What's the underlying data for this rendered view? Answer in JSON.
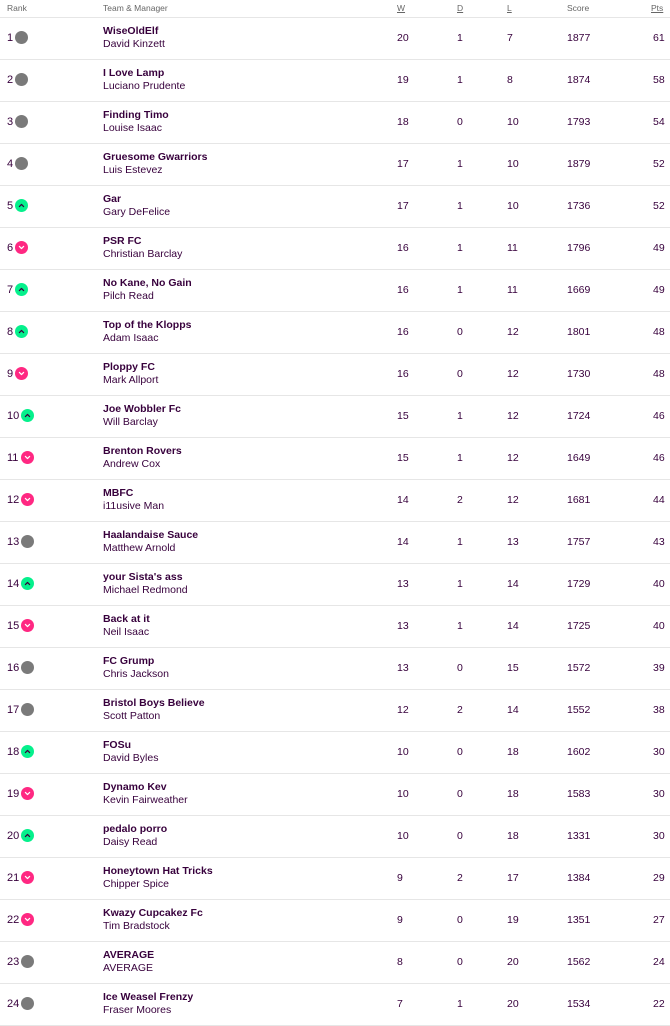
{
  "header": {
    "rank": "Rank",
    "team": "Team & Manager",
    "w": "W",
    "d": "D",
    "l": "L",
    "score": "Score",
    "pts": "Pts"
  },
  "icons": {
    "same": "circle-icon",
    "up": "chevron-up-icon",
    "down": "chevron-down-icon"
  },
  "colors": {
    "text": "#37003c",
    "same": "#7a7a7a",
    "up": "#05f08c",
    "down": "#ff2882"
  },
  "rows": [
    {
      "rank": "1",
      "movement": "same",
      "team": "WiseOldElf",
      "manager": "David Kinzett",
      "w": "20",
      "d": "1",
      "l": "7",
      "score": "1877",
      "pts": "61"
    },
    {
      "rank": "2",
      "movement": "same",
      "team": "I Love Lamp",
      "manager": "Luciano Prudente",
      "w": "19",
      "d": "1",
      "l": "8",
      "score": "1874",
      "pts": "58"
    },
    {
      "rank": "3",
      "movement": "same",
      "team": "Finding Timo",
      "manager": "Louise Isaac",
      "w": "18",
      "d": "0",
      "l": "10",
      "score": "1793",
      "pts": "54"
    },
    {
      "rank": "4",
      "movement": "same",
      "team": "Gruesome Gwarriors",
      "manager": "Luis Estevez",
      "w": "17",
      "d": "1",
      "l": "10",
      "score": "1879",
      "pts": "52"
    },
    {
      "rank": "5",
      "movement": "up",
      "team": "Gar",
      "manager": "Gary DeFelice",
      "w": "17",
      "d": "1",
      "l": "10",
      "score": "1736",
      "pts": "52"
    },
    {
      "rank": "6",
      "movement": "down",
      "team": "PSR FC",
      "manager": "Christian Barclay",
      "w": "16",
      "d": "1",
      "l": "11",
      "score": "1796",
      "pts": "49"
    },
    {
      "rank": "7",
      "movement": "up",
      "team": "No Kane, No Gain",
      "manager": "Pilch Read",
      "w": "16",
      "d": "1",
      "l": "11",
      "score": "1669",
      "pts": "49"
    },
    {
      "rank": "8",
      "movement": "up",
      "team": "Top of the Klopps",
      "manager": "Adam Isaac",
      "w": "16",
      "d": "0",
      "l": "12",
      "score": "1801",
      "pts": "48"
    },
    {
      "rank": "9",
      "movement": "down",
      "team": "Ploppy FC",
      "manager": "Mark Allport",
      "w": "16",
      "d": "0",
      "l": "12",
      "score": "1730",
      "pts": "48"
    },
    {
      "rank": "10",
      "movement": "up",
      "team": "Joe Wobbler Fc",
      "manager": "Will Barclay",
      "w": "15",
      "d": "1",
      "l": "12",
      "score": "1724",
      "pts": "46"
    },
    {
      "rank": "11",
      "movement": "down",
      "team": "Brenton Rovers",
      "manager": "Andrew Cox",
      "w": "15",
      "d": "1",
      "l": "12",
      "score": "1649",
      "pts": "46"
    },
    {
      "rank": "12",
      "movement": "down",
      "team": "MBFC",
      "manager": "i11usive Man",
      "w": "14",
      "d": "2",
      "l": "12",
      "score": "1681",
      "pts": "44"
    },
    {
      "rank": "13",
      "movement": "same",
      "team": "Haalandaise Sauce",
      "manager": "Matthew Arnold",
      "w": "14",
      "d": "1",
      "l": "13",
      "score": "1757",
      "pts": "43"
    },
    {
      "rank": "14",
      "movement": "up",
      "team": "your Sista's ass",
      "manager": "Michael Redmond",
      "w": "13",
      "d": "1",
      "l": "14",
      "score": "1729",
      "pts": "40"
    },
    {
      "rank": "15",
      "movement": "down",
      "team": "Back at it",
      "manager": "Neil Isaac",
      "w": "13",
      "d": "1",
      "l": "14",
      "score": "1725",
      "pts": "40"
    },
    {
      "rank": "16",
      "movement": "same",
      "team": "FC Grump",
      "manager": "Chris Jackson",
      "w": "13",
      "d": "0",
      "l": "15",
      "score": "1572",
      "pts": "39"
    },
    {
      "rank": "17",
      "movement": "same",
      "team": "Bristol Boys Believe",
      "manager": "Scott Patton",
      "w": "12",
      "d": "2",
      "l": "14",
      "score": "1552",
      "pts": "38"
    },
    {
      "rank": "18",
      "movement": "up",
      "team": "FOSu",
      "manager": "David Byles",
      "w": "10",
      "d": "0",
      "l": "18",
      "score": "1602",
      "pts": "30"
    },
    {
      "rank": "19",
      "movement": "down",
      "team": "Dynamo Kev",
      "manager": "Kevin Fairweather",
      "w": "10",
      "d": "0",
      "l": "18",
      "score": "1583",
      "pts": "30"
    },
    {
      "rank": "20",
      "movement": "up",
      "team": "pedalo porro",
      "manager": "Daisy Read",
      "w": "10",
      "d": "0",
      "l": "18",
      "score": "1331",
      "pts": "30"
    },
    {
      "rank": "21",
      "movement": "down",
      "team": "Honeytown Hat Tricks",
      "manager": "Chipper Spice",
      "w": "9",
      "d": "2",
      "l": "17",
      "score": "1384",
      "pts": "29"
    },
    {
      "rank": "22",
      "movement": "down",
      "team": "Kwazy Cupcakez Fc",
      "manager": "Tim Bradstock",
      "w": "9",
      "d": "0",
      "l": "19",
      "score": "1351",
      "pts": "27"
    },
    {
      "rank": "23",
      "movement": "same",
      "team": "AVERAGE",
      "manager": "AVERAGE",
      "w": "8",
      "d": "0",
      "l": "20",
      "score": "1562",
      "pts": "24"
    },
    {
      "rank": "24",
      "movement": "same",
      "team": "Ice Weasel Frenzy",
      "manager": "Fraser Moores",
      "w": "7",
      "d": "1",
      "l": "20",
      "score": "1534",
      "pts": "22"
    }
  ]
}
